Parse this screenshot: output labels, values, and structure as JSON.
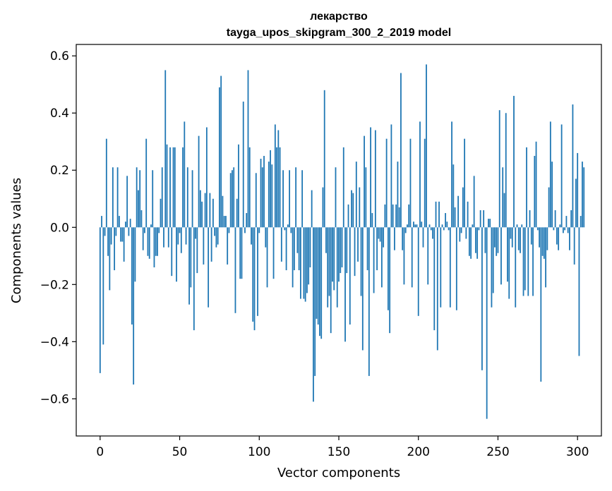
{
  "chart_data": {
    "type": "bar",
    "title": "лекарство",
    "subtitle": "tayga_upos_skipgram_300_2_2019 model",
    "xlabel": "Vector components",
    "ylabel": "Components values",
    "xlim": [
      -15,
      315
    ],
    "ylim": [
      -0.73,
      0.64
    ],
    "xticks": [
      0,
      50,
      100,
      150,
      200,
      250,
      300
    ],
    "yticks": [
      -0.6,
      -0.4,
      -0.2,
      0.0,
      0.2,
      0.4,
      0.6
    ],
    "xtick_labels": [
      "0",
      "50",
      "100",
      "150",
      "200",
      "250",
      "300"
    ],
    "ytick_labels": [
      "−0.6",
      "−0.4",
      "−0.2",
      "0.0",
      "0.2",
      "0.4",
      "0.6"
    ],
    "bar_color": "#1f77b4",
    "values": [
      -0.51,
      0.04,
      -0.41,
      -0.03,
      0.31,
      -0.1,
      -0.22,
      -0.06,
      0.21,
      -0.15,
      -0.03,
      0.21,
      0.04,
      -0.05,
      -0.05,
      -0.12,
      0.02,
      0.18,
      -0.03,
      0.03,
      -0.34,
      -0.55,
      -0.19,
      0.21,
      0.13,
      0.2,
      0.06,
      -0.08,
      -0.02,
      0.31,
      -0.1,
      -0.11,
      0.01,
      0.2,
      -0.14,
      -0.1,
      -0.1,
      -0.02,
      0.1,
      0.21,
      -0.07,
      0.55,
      0.29,
      -0.07,
      0.28,
      -0.17,
      0.28,
      0.28,
      -0.19,
      -0.06,
      -0.02,
      -0.09,
      0.28,
      0.37,
      -0.06,
      0.21,
      -0.27,
      -0.21,
      0.2,
      -0.36,
      -0.04,
      -0.16,
      0.32,
      0.13,
      0.09,
      -0.13,
      0.12,
      0.35,
      -0.28,
      0.12,
      -0.12,
      0.1,
      -0.03,
      -0.07,
      -0.06,
      0.49,
      0.53,
      0.11,
      0.04,
      0.04,
      -0.13,
      -0.02,
      0.19,
      0.2,
      0.21,
      -0.3,
      0.1,
      0.29,
      -0.18,
      -0.18,
      0.44,
      -0.02,
      0.05,
      0.55,
      0.28,
      -0.06,
      -0.33,
      -0.36,
      0.19,
      -0.31,
      -0.02,
      0.24,
      0.21,
      0.25,
      -0.07,
      -0.21,
      0.23,
      0.27,
      0.22,
      -0.18,
      0.36,
      0.28,
      0.34,
      0.28,
      -0.12,
      0.2,
      -0.01,
      -0.15,
      0.01,
      0.2,
      -0.02,
      -0.21,
      -0.15,
      0.21,
      -0.09,
      -0.15,
      -0.25,
      0.2,
      -0.25,
      -0.26,
      -0.23,
      -0.2,
      -0.14,
      0.13,
      -0.61,
      -0.52,
      -0.32,
      -0.34,
      -0.38,
      -0.39,
      0.14,
      0.48,
      -0.09,
      -0.28,
      -0.24,
      -0.37,
      -0.19,
      -0.22,
      0.21,
      -0.28,
      -0.19,
      -0.16,
      -0.14,
      0.28,
      -0.4,
      -0.16,
      0.08,
      -0.34,
      0.13,
      0.12,
      -0.17,
      0.23,
      -0.12,
      0.14,
      -0.24,
      -0.43,
      0.32,
      0.21,
      -0.15,
      -0.52,
      0.35,
      0.05,
      -0.23,
      0.34,
      -0.15,
      -0.04,
      -0.05,
      -0.21,
      -0.07,
      0.08,
      0.31,
      -0.29,
      -0.37,
      0.36,
      0.08,
      -0.08,
      0.08,
      0.23,
      0.07,
      0.54,
      -0.08,
      -0.2,
      -0.02,
      0.01,
      0.08,
      0.31,
      -0.21,
      0.02,
      0.01,
      0.01,
      -0.31,
      0.37,
      0.02,
      -0.07,
      0.31,
      0.57,
      -0.2,
      0.01,
      -0.01,
      -0.04,
      -0.36,
      0.09,
      -0.43,
      0.09,
      -0.28,
      0.01,
      -0.01,
      0.05,
      0.02,
      -0.01,
      -0.28,
      0.37,
      0.22,
      0.07,
      -0.29,
      0.11,
      -0.05,
      -0.02,
      0.14,
      0.31,
      -0.04,
      0.09,
      -0.1,
      -0.11,
      0.01,
      0.18,
      -0.09,
      -0.11,
      -0.01,
      0.06,
      -0.5,
      0.06,
      -0.09,
      -0.67,
      0.03,
      0.03,
      -0.28,
      -0.23,
      -0.07,
      -0.1,
      -0.09,
      0.41,
      -0.2,
      0.21,
      0.12,
      0.4,
      -0.19,
      -0.25,
      -0.04,
      -0.07,
      0.46,
      -0.28,
      0.01,
      -0.08,
      -0.09,
      0.01,
      -0.24,
      -0.22,
      0.28,
      -0.24,
      0.06,
      -0.06,
      -0.24,
      0.25,
      0.3,
      -0.01,
      -0.07,
      -0.54,
      -0.1,
      -0.11,
      -0.21,
      -0.08,
      0.14,
      0.37,
      0.23,
      -0.01,
      0.06,
      -0.06,
      -0.08,
      0.01,
      0.36,
      -0.02,
      -0.01,
      0.04,
      -0.02,
      -0.08,
      0.06,
      0.43,
      -0.13,
      0.17,
      0.26,
      -0.45,
      0.04,
      0.23,
      0.21
    ]
  }
}
